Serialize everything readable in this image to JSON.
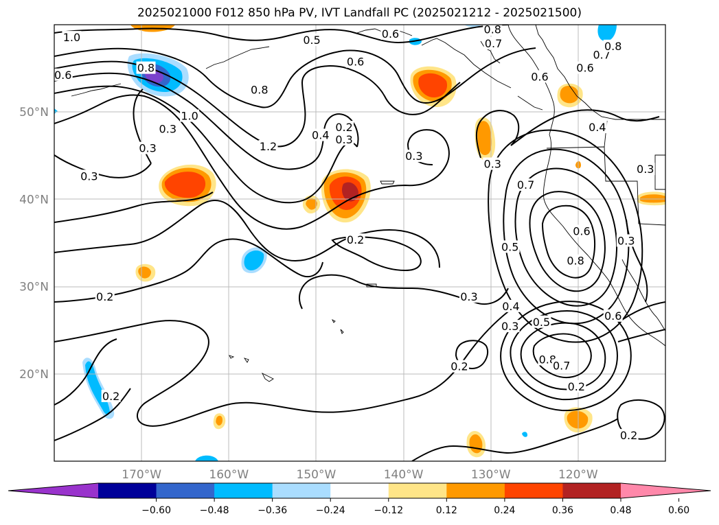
{
  "title": "2025021000 F012 850 hPa PV, IVT Landfall PC (2025021212 - 2025021500)",
  "map": {
    "lon_range": [
      -180,
      -110
    ],
    "lat_range": [
      10,
      60
    ],
    "lon_ticks": [
      {
        "value": -170,
        "label": "170°W"
      },
      {
        "value": -160,
        "label": "160°W"
      },
      {
        "value": -150,
        "label": "150°W"
      },
      {
        "value": -140,
        "label": "140°W"
      },
      {
        "value": -130,
        "label": "130°W"
      },
      {
        "value": -120,
        "label": "120°W"
      }
    ],
    "lat_ticks": [
      {
        "value": 50,
        "label": "50°N"
      },
      {
        "value": 40,
        "label": "40°N"
      },
      {
        "value": 30,
        "label": "30°N"
      },
      {
        "value": 20,
        "label": "20°N"
      }
    ],
    "gridlines": true,
    "contour_labels": [
      {
        "text": "1.0",
        "lon": -178,
        "lat": 58.5
      },
      {
        "text": "0.6",
        "lon": -179,
        "lat": 54.2
      },
      {
        "text": "0.5",
        "lon": -150.5,
        "lat": 58.2
      },
      {
        "text": "0.6",
        "lon": -141.5,
        "lat": 58.9
      },
      {
        "text": "0.8",
        "lon": -129.8,
        "lat": 59.4
      },
      {
        "text": "0.7",
        "lon": -129.7,
        "lat": 57.8
      },
      {
        "text": "0.6",
        "lon": -145.5,
        "lat": 55.7
      },
      {
        "text": "0.8",
        "lon": -169.5,
        "lat": 55.0
      },
      {
        "text": "0.8",
        "lon": -156.5,
        "lat": 52.5
      },
      {
        "text": "1.0",
        "lon": -164.5,
        "lat": 49.5
      },
      {
        "text": "0.3",
        "lon": -167.0,
        "lat": 48.0
      },
      {
        "text": "1.2",
        "lon": -155.5,
        "lat": 46.0
      },
      {
        "text": "0.4",
        "lon": -149.5,
        "lat": 47.3
      },
      {
        "text": "0.2",
        "lon": -146.8,
        "lat": 48.2
      },
      {
        "text": "0.3",
        "lon": -146.8,
        "lat": 46.8
      },
      {
        "text": "0.3",
        "lon": -169.3,
        "lat": 45.8
      },
      {
        "text": "0.3",
        "lon": -176.0,
        "lat": 42.6
      },
      {
        "text": "0.3",
        "lon": -138.8,
        "lat": 44.9
      },
      {
        "text": "0.3",
        "lon": -129.8,
        "lat": 44.0
      },
      {
        "text": "0.6",
        "lon": -124.4,
        "lat": 54.0
      },
      {
        "text": "0.6",
        "lon": -119.2,
        "lat": 55.0
      },
      {
        "text": "0.7",
        "lon": -117.3,
        "lat": 56.5
      },
      {
        "text": "0.8",
        "lon": -116.0,
        "lat": 57.5
      },
      {
        "text": "0.4",
        "lon": -117.8,
        "lat": 48.2
      },
      {
        "text": "0.3",
        "lon": -112.3,
        "lat": 43.4
      },
      {
        "text": "0.7",
        "lon": -126.0,
        "lat": 41.6
      },
      {
        "text": "0.6",
        "lon": -119.6,
        "lat": 36.3
      },
      {
        "text": "0.8",
        "lon": -120.3,
        "lat": 32.9
      },
      {
        "text": "0.5",
        "lon": -127.8,
        "lat": 34.5
      },
      {
        "text": "0.3",
        "lon": -114.5,
        "lat": 35.2
      },
      {
        "text": "0.2",
        "lon": -145.5,
        "lat": 35.3
      },
      {
        "text": "0.2",
        "lon": -174.2,
        "lat": 28.8
      },
      {
        "text": "0.3",
        "lon": -132.5,
        "lat": 28.8
      },
      {
        "text": "0.4",
        "lon": -127.7,
        "lat": 27.7
      },
      {
        "text": "0.3",
        "lon": -127.8,
        "lat": 25.4
      },
      {
        "text": "0.5",
        "lon": -124.2,
        "lat": 25.9
      },
      {
        "text": "0.6",
        "lon": -116.0,
        "lat": 26.6
      },
      {
        "text": "0.8",
        "lon": -123.5,
        "lat": 21.6
      },
      {
        "text": "0.7",
        "lon": -121.9,
        "lat": 20.9
      },
      {
        "text": "0.2",
        "lon": -133.6,
        "lat": 20.8
      },
      {
        "text": "0.2",
        "lon": -120.2,
        "lat": 18.5
      },
      {
        "text": "0.2",
        "lon": -173.5,
        "lat": 17.4
      },
      {
        "text": "0.2",
        "lon": -114.2,
        "lat": 12.9
      }
    ]
  },
  "colorbar": {
    "colors": [
      "#9933cc",
      "#000099",
      "#3366cc",
      "#00bbff",
      "#aaddff",
      "#ffffff",
      "#ffe588",
      "#ff9900",
      "#ff4400",
      "#b22222",
      "#ff88aa"
    ],
    "boundaries": [
      -0.6,
      -0.48,
      -0.36,
      -0.24,
      -0.12,
      0.12,
      0.24,
      0.36,
      0.48,
      0.6
    ],
    "tick_labels": [
      "−0.60",
      "−0.48",
      "−0.36",
      "−0.24",
      "−0.12",
      "0.12",
      "0.24",
      "0.36",
      "0.48",
      "0.60"
    ],
    "extend": "both"
  }
}
